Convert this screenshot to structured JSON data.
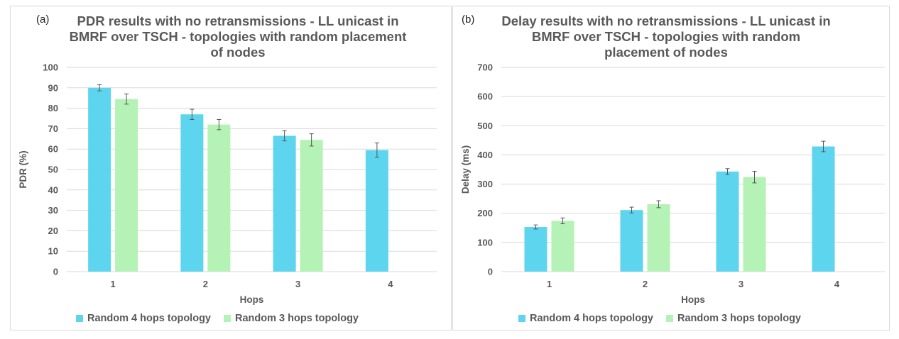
{
  "colors": {
    "series1": "#5dd5ef",
    "series2": "#b4f2b6",
    "grid": "#d9d9d9",
    "text": "#595959",
    "error": "#555555"
  },
  "chart_data": [
    {
      "type": "bar",
      "panel_label": "(a)",
      "title": "PDR results with no retransmissions - LL unicast in BMRF over TSCH - topologies with random placement of nodes",
      "title_lines": [
        "PDR results with no retransmissions - LL unicast in",
        "BMRF over TSCH - topologies with random placement",
        "of nodes"
      ],
      "xlabel": "Hops",
      "ylabel": "PDR (%)",
      "categories": [
        "1",
        "2",
        "3",
        "4"
      ],
      "ylim": [
        0,
        100
      ],
      "yticks": [
        0,
        10,
        20,
        30,
        40,
        50,
        60,
        70,
        80,
        90,
        100
      ],
      "grid": true,
      "legend": "bottom",
      "series": [
        {
          "name": "Random 4 hops topology",
          "values": [
            90,
            77,
            66.5,
            59.5
          ],
          "errors": [
            1.5,
            2.5,
            2.5,
            3.5
          ]
        },
        {
          "name": "Random 3 hops topology",
          "values": [
            84.5,
            72,
            64.5,
            null
          ],
          "errors": [
            2.5,
            2.5,
            3,
            null
          ]
        }
      ]
    },
    {
      "type": "bar",
      "panel_label": "(b)",
      "title": "Delay results with no retransmissions - LL unicast in BMRF over TSCH - topologies with random placement of nodes",
      "title_lines": [
        "Delay results with no retransmissions - LL unicast in",
        "BMRF over TSCH - topologies with random",
        "placement of nodes"
      ],
      "xlabel": "Hops",
      "ylabel": "Delay (ms)",
      "categories": [
        "1",
        "2",
        "3",
        "4"
      ],
      "ylim": [
        0,
        700
      ],
      "yticks": [
        0,
        100,
        200,
        300,
        400,
        500,
        600,
        700
      ],
      "grid": true,
      "legend": "bottom",
      "series": [
        {
          "name": "Random 4 hops topology",
          "values": [
            153,
            211,
            343,
            429
          ],
          "errors": [
            7,
            10,
            10,
            18
          ]
        },
        {
          "name": "Random 3 hops topology",
          "values": [
            174,
            231,
            324,
            null
          ],
          "errors": [
            10,
            12,
            20,
            null
          ]
        }
      ]
    }
  ]
}
